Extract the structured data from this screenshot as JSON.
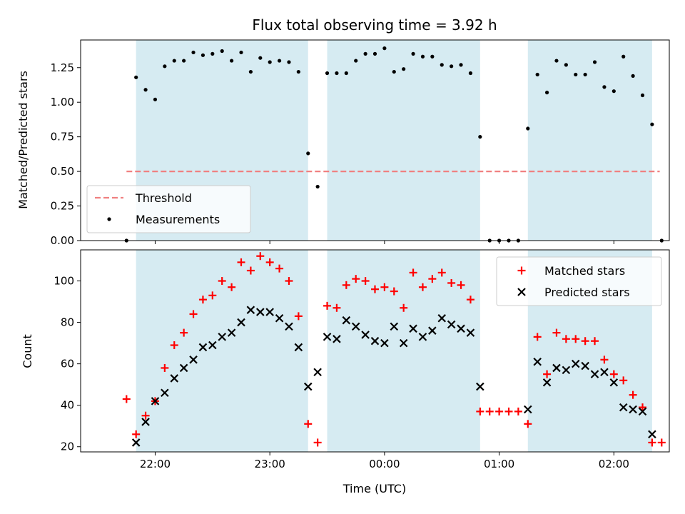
{
  "figure": {
    "title": "Flux total observing time = 3.92 h",
    "xlabel": "Time (UTC)"
  },
  "colors": {
    "shade": "#add8e6",
    "threshold": "#f08080",
    "measurement": "#000000",
    "matched": "#ff0000",
    "predicted": "#000000"
  },
  "chart_data": [
    {
      "type": "scatter",
      "ylabel": "Matched/Predicted stars",
      "xlim": [
        "21:21",
        "02:29"
      ],
      "ylim": [
        0,
        1.45
      ],
      "x_ticks": [
        "22:00",
        "23:00",
        "00:00",
        "01:00",
        "02:00"
      ],
      "y_ticks": [
        "0.00",
        "0.25",
        "0.50",
        "0.75",
        "1.00",
        "1.25"
      ],
      "shaded_intervals": [
        [
          "21:50",
          "23:20"
        ],
        [
          "23:30",
          "00:50"
        ],
        [
          "01:15",
          "02:20"
        ]
      ],
      "legend": {
        "position": "lower-left"
      },
      "series": [
        {
          "name": "Threshold",
          "style": "dashed-line",
          "x": [
            "21:45",
            "02:24"
          ],
          "values": [
            0.5,
            0.5
          ]
        },
        {
          "name": "Measurements",
          "style": "dot",
          "x": [
            "21:45",
            "21:50",
            "21:55",
            "22:00",
            "22:05",
            "22:10",
            "22:15",
            "22:20",
            "22:25",
            "22:30",
            "22:35",
            "22:40",
            "22:45",
            "22:50",
            "22:55",
            "23:00",
            "23:05",
            "23:10",
            "23:15",
            "23:20",
            "23:25",
            "23:30",
            "23:35",
            "23:40",
            "23:45",
            "23:50",
            "23:55",
            "00:00",
            "00:05",
            "00:10",
            "00:15",
            "00:20",
            "00:25",
            "00:30",
            "00:35",
            "00:40",
            "00:45",
            "00:50",
            "00:55",
            "01:00",
            "01:05",
            "01:10",
            "01:15",
            "01:20",
            "01:25",
            "01:30",
            "01:35",
            "01:40",
            "01:45",
            "01:50",
            "01:55",
            "02:00",
            "02:05",
            "02:10",
            "02:15",
            "02:20",
            "02:25"
          ],
          "values": [
            0.0,
            1.18,
            1.09,
            1.02,
            1.26,
            1.3,
            1.3,
            1.36,
            1.34,
            1.35,
            1.37,
            1.3,
            1.36,
            1.22,
            1.32,
            1.29,
            1.3,
            1.29,
            1.22,
            0.63,
            0.39,
            1.21,
            1.21,
            1.21,
            1.3,
            1.35,
            1.35,
            1.39,
            1.22,
            1.24,
            1.35,
            1.33,
            1.33,
            1.27,
            1.26,
            1.27,
            1.21,
            0.75,
            0.0,
            0.0,
            0.0,
            0.0,
            0.81,
            1.2,
            1.07,
            1.3,
            1.27,
            1.2,
            1.2,
            1.29,
            1.11,
            1.08,
            1.33,
            1.19,
            1.05,
            0.84,
            0.0
          ]
        }
      ]
    },
    {
      "type": "scatter",
      "ylabel": "Count",
      "xlim": [
        "21:21",
        "02:29"
      ],
      "ylim": [
        17.5,
        115
      ],
      "x_ticks": [
        "22:00",
        "23:00",
        "00:00",
        "01:00",
        "02:00"
      ],
      "y_ticks": [
        "20",
        "40",
        "60",
        "80",
        "100"
      ],
      "shaded_intervals": [
        [
          "21:50",
          "23:20"
        ],
        [
          "23:30",
          "00:50"
        ],
        [
          "01:15",
          "02:20"
        ]
      ],
      "legend": {
        "position": "upper-right"
      },
      "series": [
        {
          "name": "Matched stars",
          "style": "plus",
          "x": [
            "21:45",
            "21:50",
            "21:55",
            "22:00",
            "22:05",
            "22:10",
            "22:15",
            "22:20",
            "22:25",
            "22:30",
            "22:35",
            "22:40",
            "22:45",
            "22:50",
            "22:55",
            "23:00",
            "23:05",
            "23:10",
            "23:15",
            "23:20",
            "23:25",
            "23:30",
            "23:35",
            "23:40",
            "23:45",
            "23:50",
            "23:55",
            "00:00",
            "00:05",
            "00:10",
            "00:15",
            "00:20",
            "00:25",
            "00:30",
            "00:35",
            "00:40",
            "00:45",
            "00:50",
            "00:55",
            "01:00",
            "01:05",
            "01:10",
            "01:15",
            "01:20",
            "01:25",
            "01:30",
            "01:35",
            "01:40",
            "01:45",
            "01:50",
            "01:55",
            "02:00",
            "02:05",
            "02:10",
            "02:15",
            "02:20",
            "02:25"
          ],
          "values": [
            43,
            26,
            35,
            42,
            58,
            69,
            75,
            84,
            91,
            93,
            100,
            97,
            109,
            105,
            112,
            109,
            106,
            100,
            83,
            31,
            22,
            88,
            87,
            98,
            101,
            100,
            96,
            97,
            95,
            87,
            104,
            97,
            101,
            104,
            99,
            98,
            91,
            37,
            37,
            37,
            37,
            37,
            31,
            73,
            55,
            75,
            72,
            72,
            71,
            71,
            62,
            55,
            52,
            45,
            39,
            22,
            22
          ]
        },
        {
          "name": "Predicted stars",
          "style": "x",
          "x": [
            "21:50",
            "21:55",
            "22:00",
            "22:05",
            "22:10",
            "22:15",
            "22:20",
            "22:25",
            "22:30",
            "22:35",
            "22:40",
            "22:45",
            "22:50",
            "22:55",
            "23:00",
            "23:05",
            "23:10",
            "23:15",
            "23:20",
            "23:25",
            "23:30",
            "23:35",
            "23:40",
            "23:45",
            "23:50",
            "23:55",
            "00:00",
            "00:05",
            "00:10",
            "00:15",
            "00:20",
            "00:25",
            "00:30",
            "00:35",
            "00:40",
            "00:45",
            "00:50",
            "01:15",
            "01:20",
            "01:25",
            "01:30",
            "01:35",
            "01:40",
            "01:45",
            "01:50",
            "01:55",
            "02:00",
            "02:05",
            "02:10",
            "02:15",
            "02:20"
          ],
          "values": [
            22,
            32,
            42,
            46,
            53,
            58,
            62,
            68,
            69,
            73,
            75,
            80,
            86,
            85,
            85,
            82,
            78,
            68,
            49,
            56,
            73,
            72,
            81,
            78,
            74,
            71,
            70,
            78,
            70,
            77,
            73,
            76,
            82,
            79,
            77,
            75,
            49,
            38,
            61,
            51,
            58,
            57,
            60,
            59,
            55,
            56,
            51,
            39,
            38,
            37,
            26
          ]
        }
      ]
    }
  ]
}
